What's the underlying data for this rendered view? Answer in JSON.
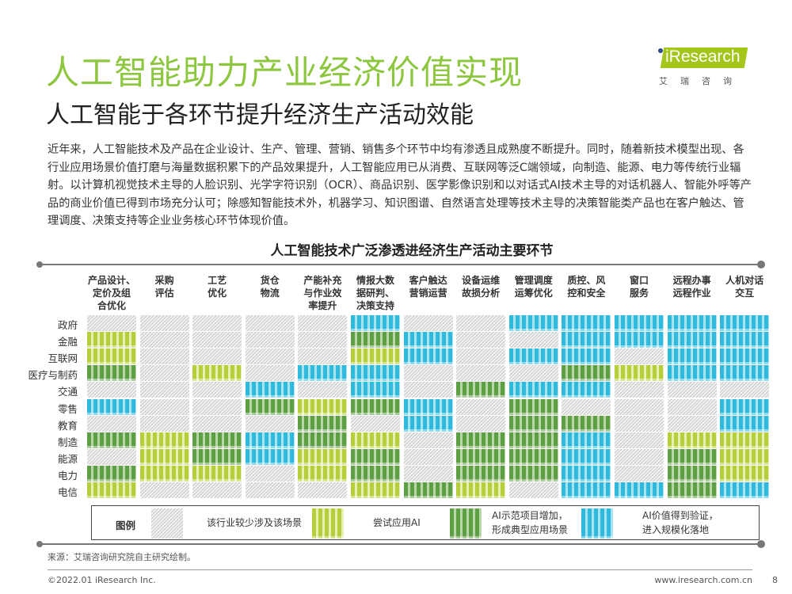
{
  "header": {
    "title": "人工智能助力产业经济价值实现",
    "subtitle": "人工智能于各环节提升经济生产活动效能",
    "logo_text": "iResearch",
    "logo_cn": "艾瑞咨询"
  },
  "paragraph": "近年来，人工智能技术及产品在企业设计、生产、管理、营销、销售多个环节中均有渗透且成熟度不断提升。同时，随着新技术模型出现、各行业应用场景价值打磨与海量数据积累下的产品效果提升，人工智能应用已从消费、互联网等泛C端领域，向制造、能源、电力等传统行业辐射。以计算机视觉技术主导的人脸识别、光学字符识别（OCR）、商品识别、医学影像识别和以对话式AI技术主导的对话机器人、智能外呼等产品的商业价值已得到市场充分认可；除感知智能技术外，机器学习、知识图谱、自然语言处理等技术主导的决策智能类产品也在客户触达、管理调度、决策支持等企业业务核心环节体现价值。",
  "colors": {
    "title": "#8dc63f",
    "level0": "#e0e0e0",
    "level1": "#b5cf3a",
    "level2": "#5e9e45",
    "level3": "#2fb9dc"
  },
  "chart_data": {
    "type": "heatmap",
    "title": "人工智能技术广泛渗透进经济生产活动主要环节",
    "columns": [
      "产品设计、定价及组合优化",
      "采购评估",
      "工艺优化",
      "货仓物流",
      "产能补充与作业效率提升",
      "情报大数据研判、决策支持",
      "客户触达营销运营",
      "设备运维故损分析",
      "管理调度运筹优化",
      "质控、风控和安全",
      "窗口服务",
      "远程办事远程作业",
      "人机对话交互"
    ],
    "rows": [
      "政府",
      "金融",
      "互联网",
      "医疗与制药",
      "交通",
      "零售",
      "教育",
      "制造",
      "能源",
      "电力",
      "电信"
    ],
    "levels": [
      "该行业较少涉及该场景",
      "尝试应用AI",
      "AI示范项目增加，形成典型应用场景",
      "AI价值得到验证，进入规模化落地"
    ],
    "values": [
      [
        0,
        0,
        0,
        0,
        0,
        3,
        0,
        0,
        3,
        3,
        3,
        3,
        3
      ],
      [
        1,
        0,
        0,
        0,
        0,
        2,
        3,
        0,
        0,
        3,
        3,
        3,
        3
      ],
      [
        1,
        0,
        0,
        0,
        0,
        1,
        3,
        0,
        3,
        3,
        0,
        3,
        3
      ],
      [
        2,
        0,
        1,
        0,
        3,
        3,
        0,
        0,
        0,
        2,
        1,
        3,
        3
      ],
      [
        0,
        0,
        0,
        3,
        0,
        3,
        0,
        2,
        3,
        3,
        0,
        0,
        0
      ],
      [
        3,
        0,
        0,
        2,
        1,
        2,
        3,
        0,
        2,
        0,
        0,
        0,
        3
      ],
      [
        0,
        0,
        0,
        0,
        2,
        0,
        3,
        0,
        2,
        2,
        0,
        0,
        3
      ],
      [
        2,
        1,
        2,
        3,
        2,
        1,
        0,
        2,
        2,
        3,
        0,
        1,
        1
      ],
      [
        0,
        1,
        2,
        3,
        1,
        2,
        0,
        2,
        2,
        3,
        0,
        2,
        1
      ],
      [
        2,
        1,
        1,
        0,
        1,
        2,
        0,
        2,
        2,
        3,
        0,
        2,
        1
      ],
      [
        1,
        0,
        0,
        0,
        0,
        1,
        2,
        1,
        0,
        3,
        3,
        2,
        3
      ]
    ]
  },
  "column_lines": [
    [
      "产品设计、",
      "定价及组",
      "合优化"
    ],
    [
      "采购",
      "评估"
    ],
    [
      "工艺",
      "优化"
    ],
    [
      "货仓",
      "物流"
    ],
    [
      "产能补充",
      "与作业效",
      "率提升"
    ],
    [
      "情报大数",
      "据研判、",
      "决策支持"
    ],
    [
      "客户触达",
      "营销运营"
    ],
    [
      "设备运维",
      "故损分析"
    ],
    [
      "管理调度",
      "运筹优化"
    ],
    [
      "质控、风",
      "控和安全"
    ],
    [
      "窗口",
      "服务"
    ],
    [
      "远程办事",
      "远程作业"
    ],
    [
      "人机对话",
      "交互"
    ]
  ],
  "legend": {
    "title": "图例",
    "items": [
      "该行业较少涉及该场景",
      "尝试应用AI",
      [
        "AI示范项目增加，",
        "形成典型应用场景"
      ],
      [
        "AI价值得到验证，",
        "进入规模化落地"
      ]
    ]
  },
  "footer": {
    "source": "来源：艾瑞咨询研究院自主研究绘制。",
    "copyright": "©2022.01 iResearch Inc.",
    "website": "www.iresearch.com.cn",
    "page": "8"
  }
}
